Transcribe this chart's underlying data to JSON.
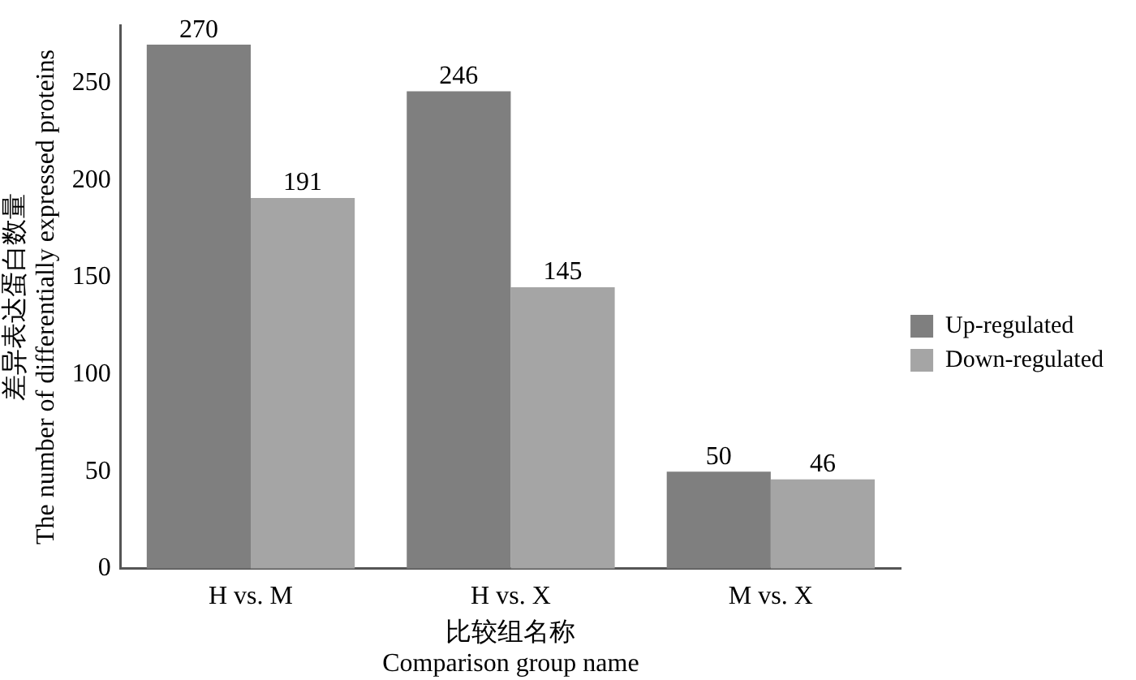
{
  "chart_data": {
    "type": "bar",
    "xlabel": "比较组名称\nComparison group name",
    "ylabel": "差异表达蛋白数量\nThe number of differentially expressed proteins",
    "categories": [
      "H vs. M",
      "H vs. X",
      "M vs. X"
    ],
    "series": [
      {
        "name": "Up-regulated",
        "color": "#7f7f7f",
        "values": [
          270,
          246,
          50
        ]
      },
      {
        "name": "Down-regulated",
        "color": "#a5a5a5",
        "values": [
          191,
          145,
          46
        ]
      }
    ],
    "ylim": [
      0,
      280
    ],
    "yticks": [
      0,
      50,
      100,
      150,
      200,
      250
    ],
    "grid": false,
    "legend": "right",
    "data_labels": true
  }
}
